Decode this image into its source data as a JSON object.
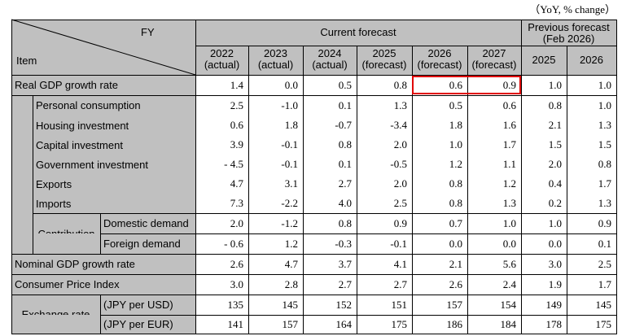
{
  "unit_note": "（YoY, % change）",
  "header": {
    "fy": "FY",
    "item": "Item",
    "current_forecast": "Current forecast",
    "previous_forecast": "Previous forecast",
    "previous_forecast_date": "(Feb 2026)",
    "columns": [
      {
        "year": "2022",
        "note": "(actual)"
      },
      {
        "year": "2023",
        "note": "(actual)"
      },
      {
        "year": "2024",
        "note": "(actual)"
      },
      {
        "year": "2025",
        "note": "(forecast)"
      },
      {
        "year": "2026",
        "note": "(forecast)"
      },
      {
        "year": "2027",
        "note": "(forecast)"
      },
      {
        "year": "2025"
      },
      {
        "year": "2026"
      }
    ]
  },
  "rows": [
    {
      "label": "Real GDP growth rate",
      "values": [
        "1.4",
        "0.0",
        "0.5",
        "0.8",
        "0.6",
        "0.9",
        "1.0",
        "1.0"
      ]
    },
    {
      "label": "Personal consumption",
      "values": [
        "2.5",
        "-1.0",
        "0.1",
        "1.3",
        "0.5",
        "0.6",
        "0.8",
        "1.0"
      ]
    },
    {
      "label": "Housing investment",
      "values": [
        "0.6",
        "1.8",
        "-0.7",
        "-3.4",
        "1.8",
        "1.6",
        "2.1",
        "1.3"
      ]
    },
    {
      "label": "Capital investment",
      "values": [
        "3.9",
        "-0.1",
        "0.8",
        "2.0",
        "1.0",
        "1.7",
        "1.5",
        "1.5"
      ]
    },
    {
      "label": "Government investment",
      "values": [
        "- 4.5",
        "-0.1",
        "0.1",
        "-0.5",
        "1.2",
        "1.1",
        "2.0",
        "0.8"
      ]
    },
    {
      "label": "Exports",
      "values": [
        "4.7",
        "3.1",
        "2.7",
        "2.0",
        "0.8",
        "1.2",
        "0.4",
        "1.7"
      ]
    },
    {
      "label": "Imports",
      "values": [
        "7.3",
        "-2.2",
        "4.0",
        "2.5",
        "0.8",
        "1.3",
        "0.2",
        "1.3"
      ]
    },
    {
      "group": "Contribution",
      "label": "Domestic demand",
      "values": [
        "2.0",
        "-1.2",
        "0.8",
        "0.9",
        "0.7",
        "1.0",
        "1.0",
        "0.9"
      ]
    },
    {
      "label": "Foreign demand",
      "values": [
        "- 0.6",
        "1.2",
        "-0.3",
        "-0.1",
        "0.0",
        "0.0",
        "0.0",
        "0.1"
      ]
    },
    {
      "label": "Nominal GDP growth rate",
      "values": [
        "2.6",
        "4.7",
        "3.7",
        "4.1",
        "2.1",
        "5.6",
        "3.0",
        "2.5"
      ]
    },
    {
      "label": "Consumer Price Index",
      "values": [
        "3.0",
        "2.8",
        "2.7",
        "2.7",
        "2.6",
        "2.4",
        "1.9",
        "1.7"
      ]
    },
    {
      "group": "Exchange rate",
      "label": "(JPY per USD)",
      "values": [
        "135",
        "145",
        "152",
        "151",
        "157",
        "154",
        "149",
        "145"
      ]
    },
    {
      "label": "(JPY per EUR)",
      "values": [
        "141",
        "157",
        "164",
        "175",
        "186",
        "184",
        "178",
        "175"
      ]
    }
  ]
}
